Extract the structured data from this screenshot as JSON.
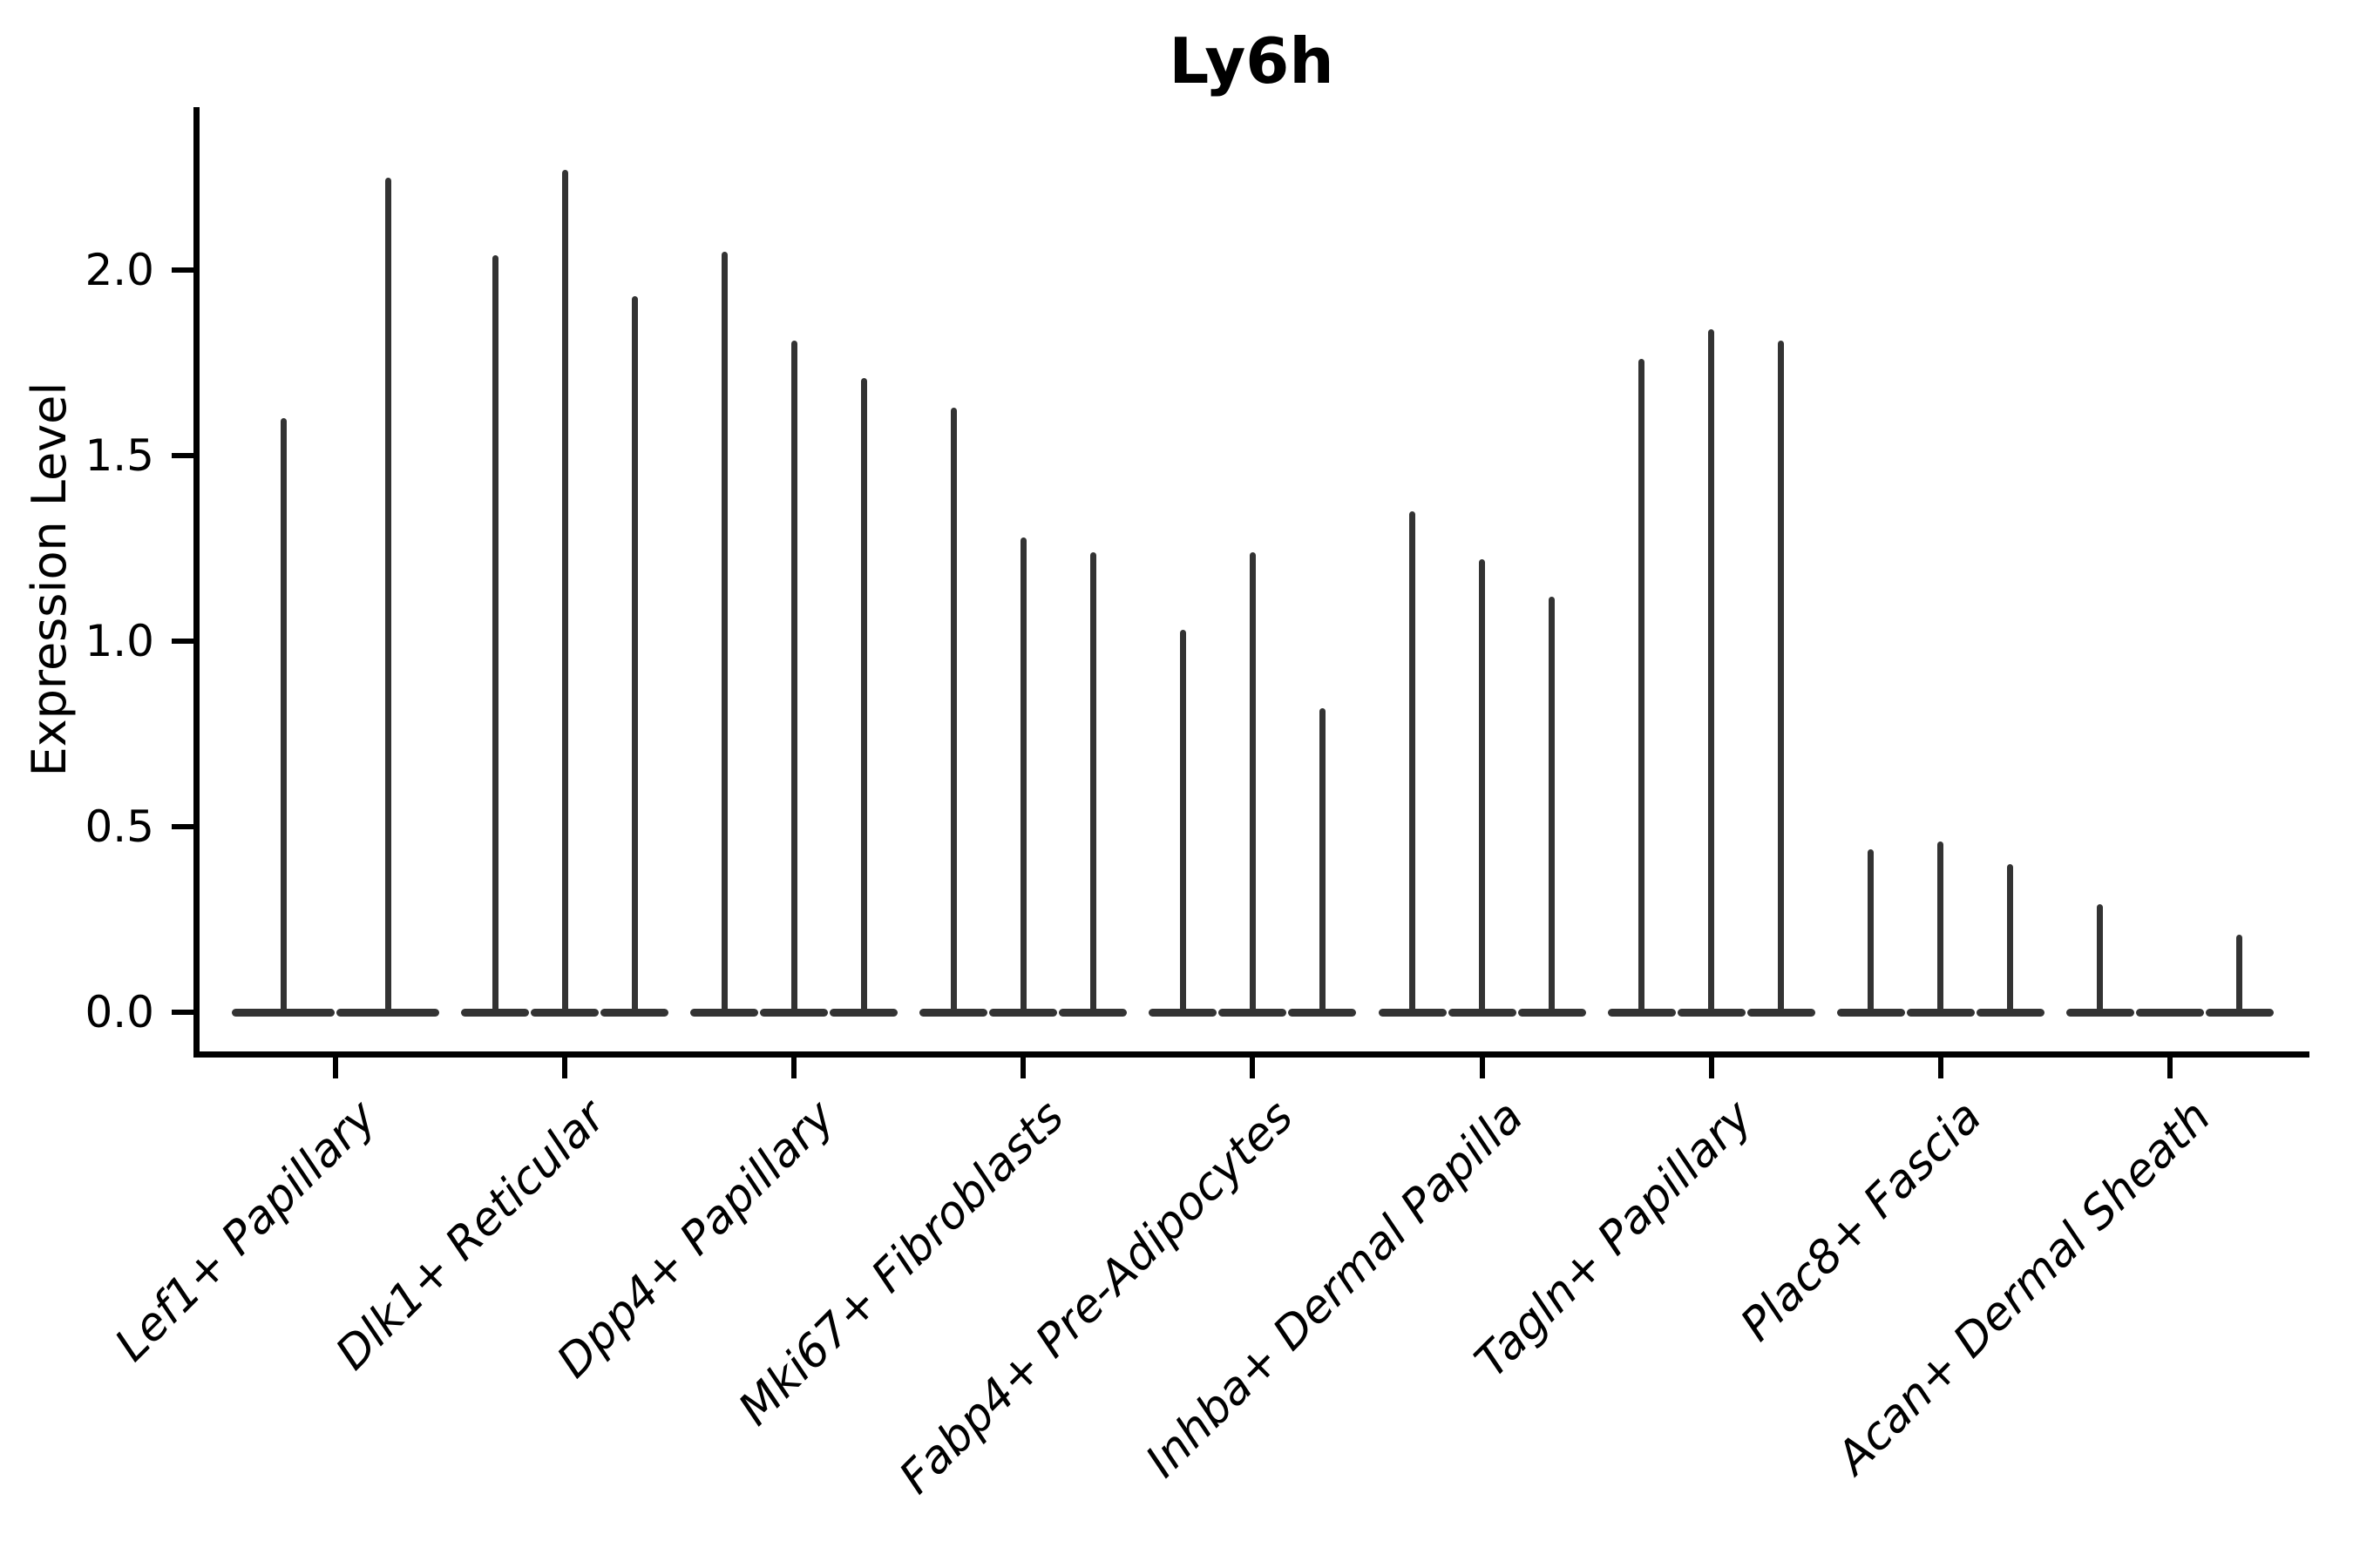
{
  "figure": {
    "title": "Ly6h",
    "background_color": "#ffffff",
    "ink_color": "#000000",
    "violin_color": "#333333"
  },
  "chart_data": {
    "type": "violin",
    "title": "Ly6h",
    "xlabel": "",
    "ylabel": "Expression Level",
    "ylim": [
      -0.11,
      2.44
    ],
    "yticks": [
      0.0,
      0.5,
      1.0,
      1.5,
      2.0
    ],
    "ytick_labels": [
      "0.0",
      "0.5",
      "1.0",
      "1.5",
      "2.0"
    ],
    "grid": false,
    "legend_position": "none",
    "x_tick_label_rotation_deg": 45,
    "x_tick_label_style": "italic",
    "categories": [
      "Lef1+ Papillary",
      "Dlk1+ Reticular",
      "Dpp4+ Papillary",
      "Mki67+ Fibroblasts",
      "Fabp4+ Pre-Adipocytes",
      "Inhba+ Dermal Papilla",
      "Tagln+ Papillary",
      "Plac8+ Fascia",
      "Acan+ Dermal Sheath"
    ],
    "groups": [
      {
        "category": "Lef1+ Papillary",
        "violin_max_expression": [
          1.6,
          2.25
        ]
      },
      {
        "category": "Dlk1+ Reticular",
        "violin_max_expression": [
          2.04,
          2.27,
          1.93
        ]
      },
      {
        "category": "Dpp4+ Papillary",
        "violin_max_expression": [
          2.05,
          1.81,
          1.71
        ]
      },
      {
        "category": "Mki67+ Fibroblasts",
        "violin_max_expression": [
          1.63,
          1.28,
          1.24
        ]
      },
      {
        "category": "Fabp4+ Pre-Adipocytes",
        "violin_max_expression": [
          1.03,
          1.24,
          0.82
        ]
      },
      {
        "category": "Inhba+ Dermal Papilla",
        "violin_max_expression": [
          1.35,
          1.22,
          1.12
        ]
      },
      {
        "category": "Tagln+ Papillary",
        "violin_max_expression": [
          1.76,
          1.84,
          1.81
        ]
      },
      {
        "category": "Plac8+ Fascia",
        "violin_max_expression": [
          0.44,
          0.46,
          0.4
        ]
      },
      {
        "category": "Acan+ Dermal Sheath",
        "violin_max_expression": [
          0.29,
          null,
          0.21
        ]
      }
    ]
  }
}
